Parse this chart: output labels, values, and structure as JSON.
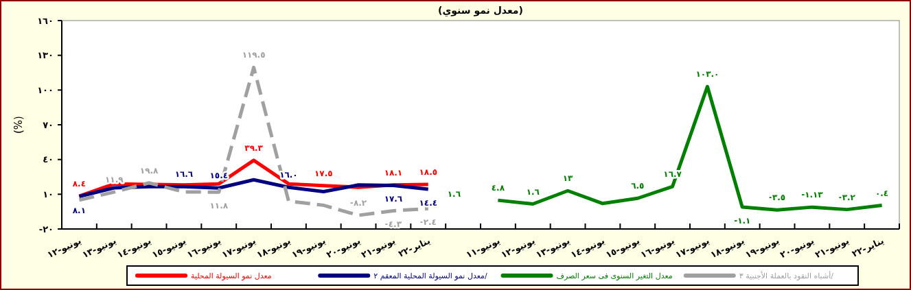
{
  "chart_data": {
    "type": "line",
    "title": "(معدل نمو سنوي)",
    "ylabel": "(%)",
    "categories": [
      "يونيو-١٢",
      "يونيو-١٣",
      "يونيو-١٤",
      "يونيو-١٥",
      "يونيو-١٦",
      "يونيو-١٧",
      "يونيو-١٨",
      "يونيو-١٩",
      "يونيو-٢٠",
      "يونيو-٢١",
      "يناير-٢٢",
      null,
      "يونيو-١١",
      "يونيو-١٢",
      "يونيو-١٣",
      "يونيو-١٤",
      "يونيو-١٥",
      "يونيو-١٦",
      "يونيو-١٧",
      "يونيو-١٨",
      "يونيو-١٩",
      "يونيو-٢٠",
      "يونيو-٢١",
      "يناير-٢٢"
    ],
    "ylim": [
      -20,
      160
    ],
    "yticks": [
      {
        "value": -20,
        "label": "-٢٠"
      },
      {
        "value": 10,
        "label": "١٠"
      },
      {
        "value": 40,
        "label": "٤٠"
      },
      {
        "value": 70,
        "label": "٧٠"
      },
      {
        "value": 100,
        "label": "١٠٠"
      },
      {
        "value": 130,
        "label": "١٣٠"
      },
      {
        "value": 160,
        "label": "١٦٠"
      }
    ],
    "legend": "bottom",
    "marker": "none",
    "annotations": [
      "١.٦"
    ],
    "series": [
      {
        "name": "معدل نمو السيولة المحلية",
        "color": "#ff0000",
        "line_style": "solid",
        "values": [
          8.4,
          19,
          18.5,
          18,
          19,
          39.3,
          19,
          17.5,
          16,
          18.1,
          18.5,
          null,
          null,
          null,
          null,
          null,
          null,
          null,
          null,
          null,
          null,
          null,
          null,
          null
        ],
        "value_labels": [
          "٨.٤",
          null,
          null,
          null,
          null,
          "٣٩.٣",
          null,
          "١٧.٥",
          null,
          "١٨.١",
          "١٨.٥",
          null,
          null,
          null,
          null,
          null,
          null,
          null,
          null,
          null,
          null,
          null,
          null,
          null
        ]
      },
      {
        "name": "معدل نمو السيولة المحلية المعقم ٢/",
        "color": "#000080",
        "line_style": "solid",
        "values": [
          8.1,
          15.5,
          16.6,
          16.6,
          15.4,
          22.5,
          16.0,
          12.3,
          18,
          17.6,
          14.4,
          null,
          null,
          null,
          null,
          null,
          null,
          null,
          null,
          null,
          null,
          null,
          null,
          null
        ],
        "value_labels": [
          "٨.١",
          null,
          null,
          "١٦.٦",
          "١٥.٤",
          null,
          "١٦.٠",
          null,
          null,
          "١٧.٦",
          "١٤.٤",
          null,
          null,
          null,
          null,
          null,
          null,
          null,
          null,
          null,
          null,
          null,
          null,
          null
        ]
      },
      {
        "name": "معدل التغير السنوى فى سعر الصرف",
        "color": "#008000",
        "line_style": "solid",
        "values": [
          null,
          null,
          null,
          null,
          null,
          null,
          null,
          null,
          null,
          null,
          null,
          null,
          4.8,
          1.6,
          13,
          2,
          6.5,
          16.7,
          103.0,
          -1.1,
          -3.5,
          -1.13,
          -3.2,
          0.4
        ],
        "value_labels": [
          null,
          null,
          null,
          null,
          null,
          null,
          null,
          null,
          null,
          null,
          null,
          null,
          "٤.٨",
          "١.٦",
          "١٣",
          null,
          "٦.٥",
          "١٦.٧",
          "١٠٣.٠",
          "-١.١",
          "-٣.٥",
          "-١.١٣",
          "-٣.٢",
          "٠.٤"
        ]
      },
      {
        "name": "أشباه النقود بالعملة الأجنبية ٣/",
        "color": "#a0a0a0",
        "line_style": "dashed",
        "values": [
          5,
          11.9,
          19.8,
          12,
          11.8,
          119.5,
          4,
          0.5,
          -8.2,
          -4.3,
          -2.4,
          null,
          null,
          null,
          null,
          null,
          null,
          null,
          null,
          null,
          null,
          null,
          null,
          null
        ],
        "value_labels": [
          null,
          "١١.٩",
          "١٩.٨",
          null,
          "١١.٨",
          "١١٩.٥",
          null,
          null,
          "-٨.٢",
          "-٤.٣",
          "-٢.٤",
          null,
          null,
          null,
          null,
          null,
          null,
          null,
          null,
          null,
          null,
          null,
          null,
          null
        ]
      }
    ]
  }
}
